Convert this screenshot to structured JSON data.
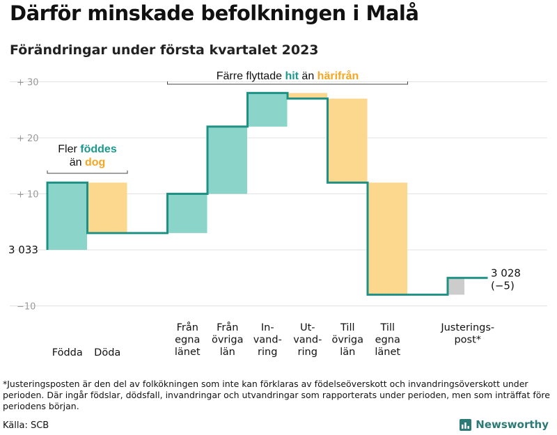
{
  "title": "Därför minskade befolkningen i Malå",
  "subtitle": "Förändringar under första kvartalet 2023",
  "footnote": "*Justeringsposten är den del av folkökningen som inte kan förklaras av födelseöverskott och invandringsöverskott under perioden. Där ingår födslar, dödsfall, invandringar och utvandringar som rapporterats under perioden, men som inträffat före periodens början.",
  "source": "Källa: SCB",
  "brand": "Newsworthy",
  "colors": {
    "line": "#1e9185",
    "increase": "#8ad4ca",
    "decrease": "#fcd78e",
    "adjustment": "#cccccc",
    "teal_text": "#1a9a8c",
    "orange_text": "#f5a623",
    "grid": "#e2e2e2",
    "tick_text": "#9a9a9a"
  },
  "chart_data": {
    "type": "waterfall",
    "baseline": 3033,
    "start_label": "3 033",
    "end_label": "3 028",
    "end_change_label": "(−5)",
    "y_ticks": [
      {
        "value": 30,
        "label": "+ 30"
      },
      {
        "value": 20,
        "label": "+ 20"
      },
      {
        "value": 10,
        "label": "+ 10"
      },
      {
        "value": -10,
        "label": "−10"
      }
    ],
    "ylim": [
      -11,
      31
    ],
    "grid": true,
    "steps": [
      {
        "label": "Födda",
        "change": 12,
        "kind": "increase"
      },
      {
        "label": "Döda",
        "change": -9,
        "kind": "decrease"
      },
      {
        "label": "",
        "change": 0,
        "kind": "gap"
      },
      {
        "label": "Från\negna\nlänet",
        "change": 7,
        "kind": "increase"
      },
      {
        "label": "Från\növriga\nlän",
        "change": 12,
        "kind": "increase"
      },
      {
        "label": "In-\nvand-\nring",
        "change": 6,
        "kind": "increase"
      },
      {
        "label": "Ut-\nvand-\nring",
        "change": -1,
        "kind": "decrease"
      },
      {
        "label": "Till\növriga\nlän",
        "change": -15,
        "kind": "decrease"
      },
      {
        "label": "Till\negna\nlänet",
        "change": -20,
        "kind": "decrease"
      },
      {
        "label": "",
        "change": 0,
        "kind": "gap"
      },
      {
        "label": "Justerings-\npost*",
        "change": 3,
        "kind": "adjustment"
      }
    ],
    "annotations": [
      {
        "from_step": 0,
        "to_step": 1,
        "parts": [
          {
            "text": "Fler ",
            "style": "plain"
          },
          {
            "text": "föddes",
            "style": "teal"
          },
          {
            "text": "än ",
            "style": "plain",
            "newline": true
          },
          {
            "text": "dog",
            "style": "orange"
          }
        ]
      },
      {
        "from_step": 3,
        "to_step": 8,
        "parts": [
          {
            "text": "Färre flyttade ",
            "style": "plain"
          },
          {
            "text": "hit",
            "style": "teal"
          },
          {
            "text": " än ",
            "style": "plain"
          },
          {
            "text": "härifrån",
            "style": "orange"
          }
        ]
      }
    ]
  }
}
